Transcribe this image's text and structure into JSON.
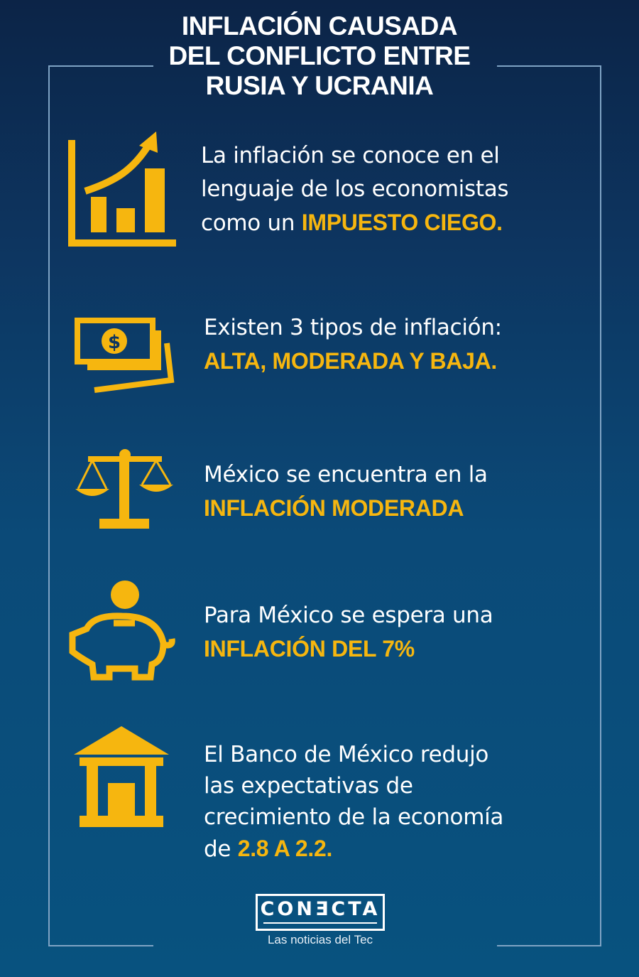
{
  "title": [
    "INFLACIÓN  CAUSADA",
    "DEL CONFLICTO ENTRE",
    "RUSIA Y UCRANIA"
  ],
  "accent_color": "#f6b60f",
  "items": [
    {
      "icon": "growth-chart-icon",
      "lines": [
        "La inflación se conoce en el",
        "lenguaje de los economistas",
        "como un "
      ],
      "highlight": "IMPUESTO CIEGO."
    },
    {
      "icon": "money-bills-icon",
      "lines": [
        "Existen 3 tipos de inflación:"
      ],
      "highlight": "ALTA, MODERADA Y BAJA."
    },
    {
      "icon": "balance-scale-icon",
      "lines": [
        "México se encuentra en la"
      ],
      "highlight": "INFLACIÓN MODERADA"
    },
    {
      "icon": "piggy-bank-icon",
      "lines": [
        "Para México se espera una"
      ],
      "highlight": "INFLACIÓN DEL 7%"
    },
    {
      "icon": "bank-building-icon",
      "lines": [
        "El Banco de México redujo",
        "las expectativas de",
        "crecimiento de la economía",
        "de "
      ],
      "highlight": "2.8 A 2.2."
    }
  ],
  "logo": {
    "name": "CONƎCTA",
    "tagline": "Las noticias del Tec"
  }
}
